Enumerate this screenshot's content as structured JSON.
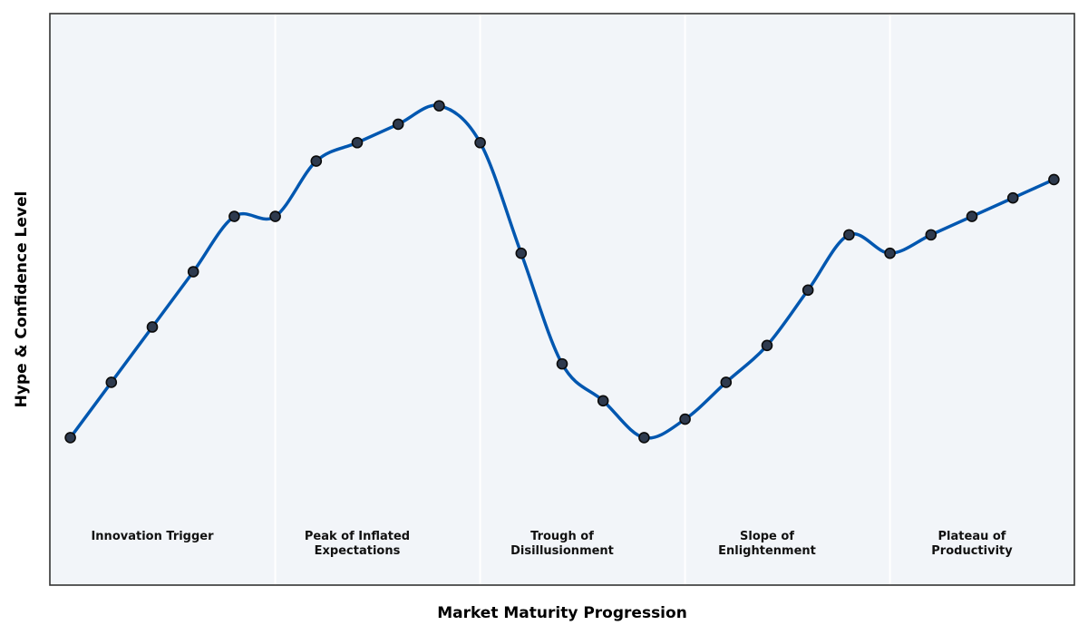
{
  "chart_data": {
    "type": "line",
    "title": "",
    "xlabel": "Market Maturity Progression",
    "ylabel": "Hype & Confidence Level",
    "x_ticks_shown": false,
    "y_ticks_shown": false,
    "grid": false,
    "legend": "none",
    "xlim": [
      -0.5,
      24.5
    ],
    "ylim": [
      0,
      31
    ],
    "phase_boundaries": [
      5,
      10,
      15,
      20
    ],
    "phases": [
      {
        "label": "Innovation Trigger",
        "x": 2
      },
      {
        "label": "Peak of Inflated\nExpectations",
        "x": 7
      },
      {
        "label": "Trough of\nDisillusionment",
        "x": 12
      },
      {
        "label": "Slope of\nEnlightenment",
        "x": 17
      },
      {
        "label": "Plateau of\nProductivity",
        "x": 22
      }
    ],
    "series": [
      {
        "x": [
          0,
          1,
          2,
          3,
          4,
          5,
          6,
          7,
          8,
          9,
          10,
          11,
          12,
          13,
          14,
          15,
          16,
          17,
          18,
          19,
          20,
          21,
          22,
          23,
          24
        ],
        "values": [
          8,
          11,
          14,
          17,
          20,
          20,
          23,
          24,
          25,
          26,
          24,
          18,
          12,
          10,
          8,
          9,
          11,
          13,
          16,
          19,
          18,
          19,
          20,
          21,
          22
        ]
      }
    ],
    "colors": {
      "line": "#0057b0",
      "marker_fill": "#2e3a4e",
      "marker_edge": "#0b0b0b",
      "plot_background": "#f2f5f9",
      "phase_divider": "#ffffff",
      "frame": "#333333"
    }
  }
}
